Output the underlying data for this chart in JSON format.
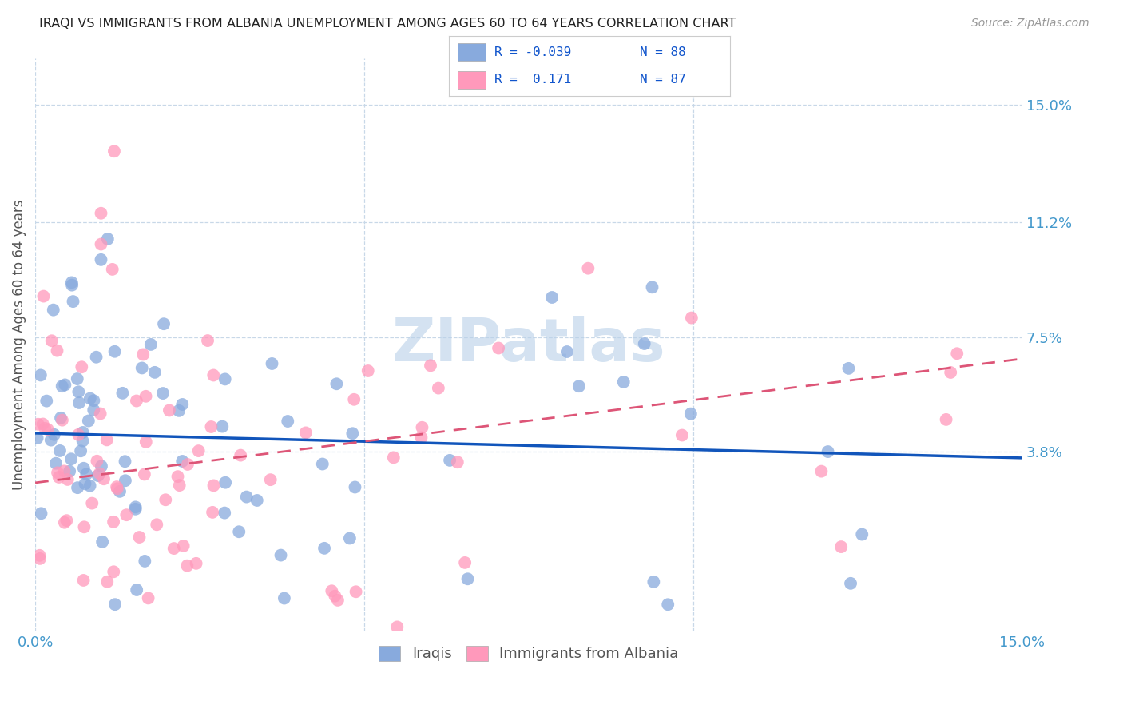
{
  "title": "IRAQI VS IMMIGRANTS FROM ALBANIA UNEMPLOYMENT AMONG AGES 60 TO 64 YEARS CORRELATION CHART",
  "source": "Source: ZipAtlas.com",
  "ylabel": "Unemployment Among Ages 60 to 64 years",
  "xlim": [
    0.0,
    0.15
  ],
  "ylim": [
    -0.02,
    0.165
  ],
  "ytick_right_labels": [
    "15.0%",
    "11.2%",
    "7.5%",
    "3.8%"
  ],
  "ytick_right_values": [
    0.15,
    0.112,
    0.075,
    0.038
  ],
  "color_iraqis": "#88aadd",
  "color_albania": "#ff99bb",
  "trendline_iraqis_color": "#1155bb",
  "trendline_albania_color": "#dd5577",
  "watermark": "ZIPatlas",
  "watermark_color": "#b8d0e8",
  "background_color": "#ffffff",
  "legend_label1": "Iraqis",
  "legend_label2": "Immigrants from Albania",
  "iraqis_trendline": [
    0.044,
    0.036
  ],
  "albania_trendline": [
    0.028,
    0.068
  ]
}
